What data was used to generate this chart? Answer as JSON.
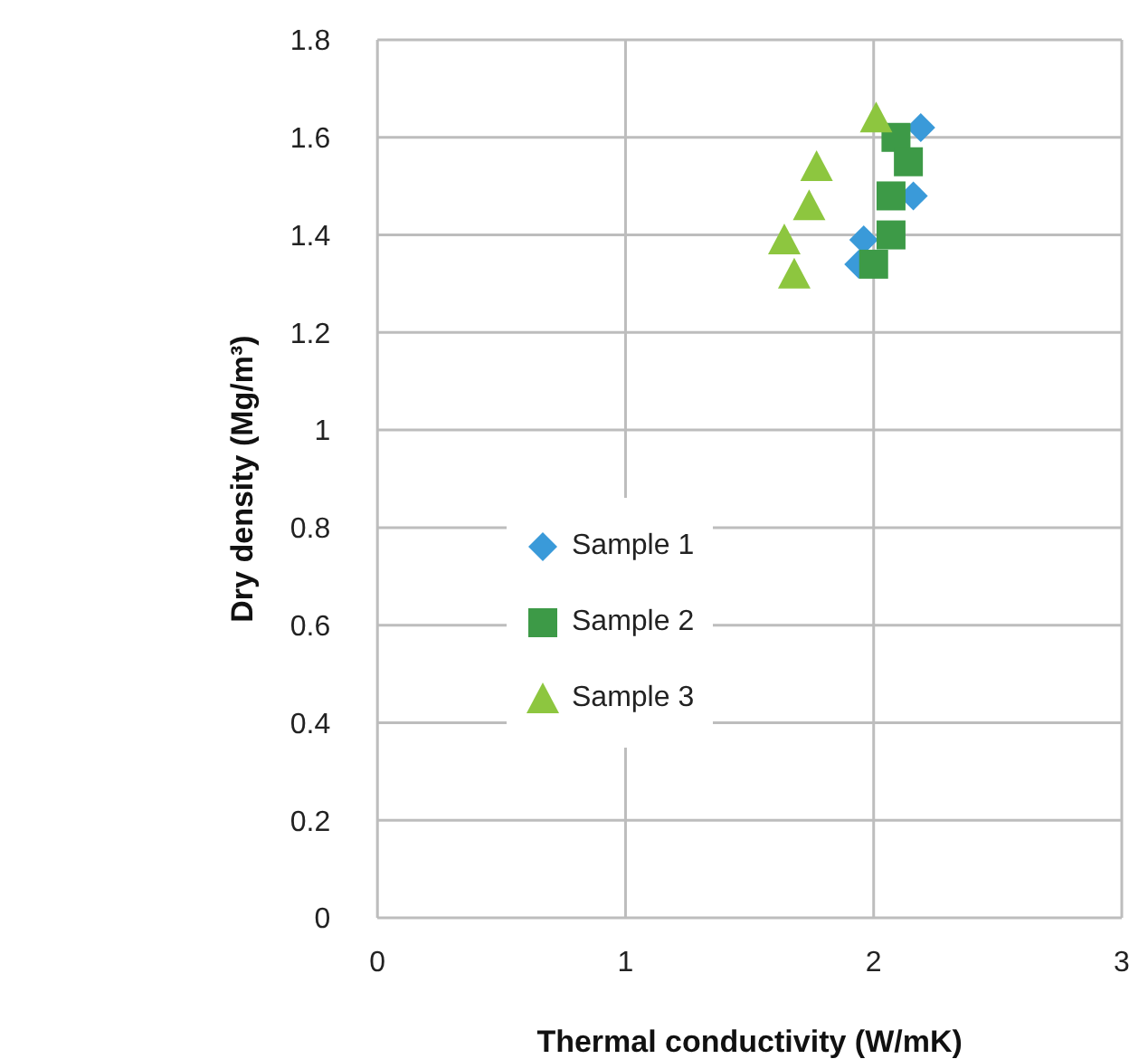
{
  "chart_data": {
    "type": "scatter",
    "xlabel": "Thermal conductivity (W/mK)",
    "ylabel": "Dry density (Mg/m³)",
    "xlim": [
      0,
      3
    ],
    "xticks": [
      0,
      1,
      2,
      3
    ],
    "ylim": [
      0,
      1.8
    ],
    "yticks": [
      0,
      0.2,
      0.4,
      0.6,
      0.8,
      1,
      1.2,
      1.4,
      1.6,
      1.8
    ],
    "grid": true,
    "legend": "center",
    "series": [
      {
        "name": "Sample 1",
        "color": "#3a9ad9",
        "marker": "diamond",
        "x": [
          2.19,
          2.16,
          1.96,
          1.94
        ],
        "values": [
          1.62,
          1.48,
          1.39,
          1.34
        ]
      },
      {
        "name": "Sample 2",
        "color": "#3d9a47",
        "marker": "square",
        "x": [
          2.09,
          2.14,
          2.07,
          2.07,
          2.0
        ],
        "values": [
          1.6,
          1.55,
          1.48,
          1.4,
          1.34
        ]
      },
      {
        "name": "Sample 3",
        "color": "#8dc63f",
        "marker": "triangle",
        "x": [
          2.01,
          1.77,
          1.74,
          1.64,
          1.68
        ],
        "values": [
          1.64,
          1.54,
          1.46,
          1.39,
          1.32
        ]
      }
    ]
  }
}
